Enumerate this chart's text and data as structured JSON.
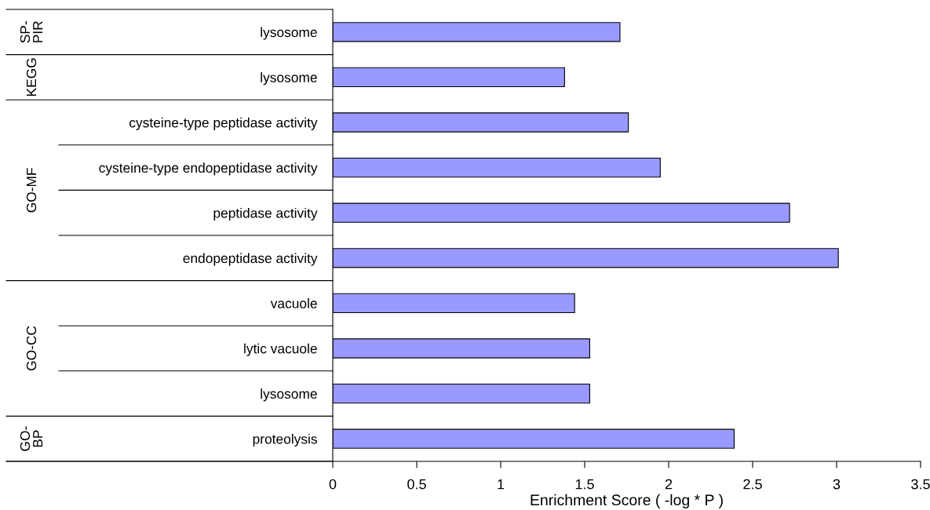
{
  "chart_data": {
    "type": "bar",
    "orientation": "horizontal",
    "xlabel": "Enrichment Score ( -log * P )",
    "categories": [
      "lysosome",
      "lysosome",
      "cysteine-type peptidase activity",
      "cysteine-type endopeptidase activity",
      "peptidase activity",
      "endopeptidase activity",
      "vacuole",
      "lytic vacuole",
      "lysosome",
      "proteolysis"
    ],
    "values": [
      1.71,
      1.38,
      1.76,
      1.95,
      2.72,
      3.01,
      1.44,
      1.53,
      1.53,
      2.39
    ],
    "color": "#9999ff",
    "xlim": [
      0,
      3.5
    ],
    "xticks": [
      0,
      0.5,
      1,
      1.5,
      2,
      2.5,
      3,
      3.5
    ],
    "grid": false,
    "legend": false,
    "annotations": [
      "SP-\nPIR",
      "KEGG",
      "GO-MF",
      "GO-CC",
      "GO-\nBP"
    ]
  }
}
